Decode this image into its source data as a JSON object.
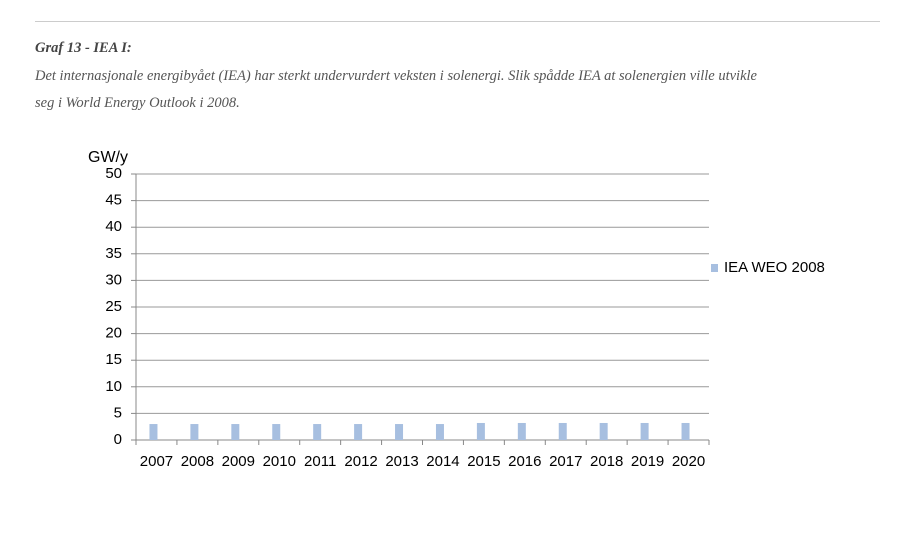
{
  "heading": "Graf 13 - IEA I:",
  "caption": [
    "Det internasjonale energibyået (IEA) har sterkt undervurdert veksten i solenergi. Slik spådde IEA at solenergien ville utvikle",
    "seg i World Energy Outlook i 2008."
  ],
  "chart_data": {
    "type": "bar",
    "y_label": "GW/y",
    "categories": [
      "2007",
      "2008",
      "2009",
      "2010",
      "2011",
      "2012",
      "2013",
      "2014",
      "2015",
      "2016",
      "2017",
      "2018",
      "2019",
      "2020"
    ],
    "series": [
      {
        "name": "IEA WEO 2008",
        "color": "#a7bfe0",
        "values": [
          3,
          3,
          3,
          3,
          3,
          3,
          3,
          3,
          3.2,
          3.2,
          3.2,
          3.2,
          3.2,
          3.2
        ]
      }
    ],
    "ylim": [
      0,
      50
    ],
    "yticks": [
      0,
      5,
      10,
      15,
      20,
      25,
      30,
      35,
      40,
      45,
      50
    ],
    "grid": true,
    "legend": "right"
  }
}
